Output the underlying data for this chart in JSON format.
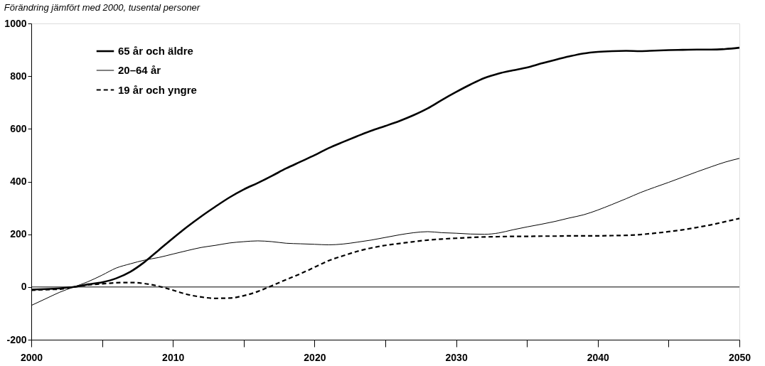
{
  "chart_data": {
    "type": "line",
    "subtitle": "Förändring jämfört med 2000, tusental personer",
    "x": [
      2000,
      2001,
      2002,
      2003,
      2004,
      2005,
      2006,
      2007,
      2008,
      2009,
      2010,
      2011,
      2012,
      2013,
      2014,
      2015,
      2016,
      2017,
      2018,
      2019,
      2020,
      2021,
      2022,
      2023,
      2024,
      2025,
      2026,
      2027,
      2028,
      2029,
      2030,
      2031,
      2032,
      2033,
      2034,
      2035,
      2036,
      2037,
      2038,
      2039,
      2040,
      2041,
      2042,
      2043,
      2044,
      2045,
      2046,
      2047,
      2048,
      2049,
      2050
    ],
    "series": [
      {
        "name": "65 år och äldre",
        "color": "#000000",
        "line_style": "solid",
        "values": [
          -10,
          -8,
          -5,
          0,
          10,
          18,
          33,
          58,
          95,
          140,
          185,
          228,
          268,
          305,
          340,
          370,
          395,
          422,
          450,
          475,
          500,
          527,
          550,
          572,
          593,
          611,
          630,
          652,
          678,
          710,
          740,
          768,
          793,
          810,
          822,
          833,
          848,
          862,
          875,
          886,
          892,
          895,
          896,
          895,
          897,
          899,
          900,
          901,
          901,
          903,
          908
        ]
      },
      {
        "name": "20–64 år",
        "color": "#000000",
        "line_style": "solid",
        "values": [
          -70,
          -45,
          -20,
          0,
          20,
          45,
          72,
          88,
          102,
          112,
          125,
          138,
          150,
          158,
          167,
          172,
          175,
          172,
          166,
          164,
          162,
          160,
          163,
          170,
          178,
          188,
          198,
          206,
          210,
          206,
          204,
          201,
          200,
          205,
          217,
          228,
          238,
          249,
          262,
          274,
          292,
          313,
          335,
          358,
          378,
          397,
          417,
          437,
          456,
          474,
          488
        ]
      },
      {
        "name": "19 år och yngre",
        "color": "#000000",
        "line_style": "dashed",
        "values": [
          -12,
          -10,
          -8,
          0,
          8,
          12,
          16,
          17,
          13,
          3,
          -12,
          -28,
          -38,
          -43,
          -42,
          -33,
          -17,
          5,
          28,
          50,
          75,
          100,
          118,
          135,
          148,
          158,
          165,
          172,
          178,
          182,
          185,
          188,
          190,
          191,
          192,
          192,
          193,
          193,
          194,
          194,
          194,
          195,
          196,
          199,
          204,
          210,
          217,
          226,
          236,
          248,
          260
        ]
      }
    ],
    "xlim": [
      2000,
      2050
    ],
    "xticks": [
      2000,
      {
        "value": 2005,
        "label": null
      },
      2010,
      {
        "value": 2015,
        "label": null
      },
      2020,
      {
        "value": 2025,
        "label": null
      },
      2030,
      {
        "value": 2035,
        "label": null
      },
      2040,
      {
        "value": 2045,
        "label": null
      },
      2050
    ],
    "ylim": [
      -200,
      1000
    ],
    "yticks": [
      -200,
      0,
      200,
      400,
      600,
      800,
      1000
    ],
    "ref_lines": [
      {
        "axis": "y",
        "value": 0,
        "color": "#000000"
      }
    ],
    "grid": false,
    "legend": "top left"
  }
}
